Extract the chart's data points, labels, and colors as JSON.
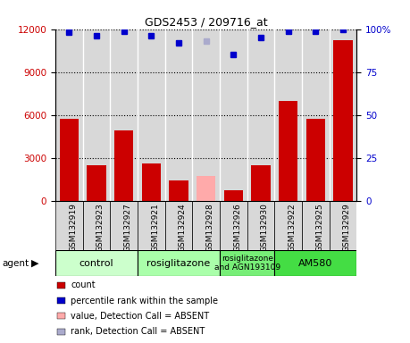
{
  "title": "GDS2453 / 209716_at",
  "samples": [
    "GSM132919",
    "GSM132923",
    "GSM132927",
    "GSM132921",
    "GSM132924",
    "GSM132928",
    "GSM132926",
    "GSM132930",
    "GSM132922",
    "GSM132925",
    "GSM132929"
  ],
  "counts": [
    5700,
    2500,
    4900,
    2600,
    1400,
    1700,
    700,
    2500,
    7000,
    5700,
    11200
  ],
  "absent_count": [
    false,
    false,
    false,
    false,
    false,
    true,
    false,
    false,
    false,
    false,
    false
  ],
  "percentile_ranks": [
    98,
    96,
    99,
    96,
    92,
    93,
    85,
    95,
    99,
    99,
    100
  ],
  "absent_rank": [
    false,
    false,
    false,
    false,
    false,
    true,
    false,
    false,
    false,
    false,
    false
  ],
  "count_color": "#cc0000",
  "absent_count_color": "#ffaaaa",
  "rank_color": "#0000cc",
  "absent_rank_color": "#aaaacc",
  "ylim_left": [
    0,
    12000
  ],
  "ylim_right": [
    0,
    100
  ],
  "yticks_left": [
    0,
    3000,
    6000,
    9000,
    12000
  ],
  "yticks_right": [
    0,
    25,
    50,
    75,
    100
  ],
  "yticklabels_right": [
    "0",
    "25",
    "50",
    "75",
    "100%"
  ],
  "chart_bg": "#d8d8d8",
  "groups": [
    {
      "label": "control",
      "start": 0,
      "end": 2,
      "color": "#ccffcc"
    },
    {
      "label": "rosiglitazone",
      "start": 3,
      "end": 5,
      "color": "#aaffaa"
    },
    {
      "label": "rosiglitazone\nand AGN193109",
      "start": 6,
      "end": 7,
      "color": "#77ee77"
    },
    {
      "label": "AM580",
      "start": 8,
      "end": 10,
      "color": "#44dd44"
    }
  ],
  "legend_items": [
    {
      "color": "#cc0000",
      "label": "count"
    },
    {
      "color": "#0000cc",
      "label": "percentile rank within the sample"
    },
    {
      "color": "#ffaaaa",
      "label": "value, Detection Call = ABSENT"
    },
    {
      "color": "#aaaacc",
      "label": "rank, Detection Call = ABSENT"
    }
  ]
}
